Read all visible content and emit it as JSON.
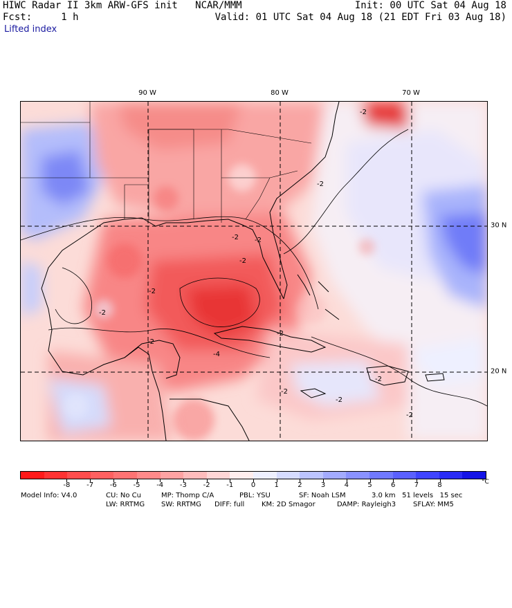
{
  "header": {
    "title": "HIWC Radar II 3km ARW-GFS init   NCAR/MMM",
    "fcst": "Fcst:     1 h",
    "field": "Lifted index",
    "init": "Init: 00 UTC Sat 04 Aug 18",
    "valid": "Valid: 01 UTC Sat 04 Aug 18 (21 EDT Fri 03 Aug 18)"
  },
  "map": {
    "lon_labels": [
      "90 W",
      "80 W",
      "70 W"
    ],
    "lat_labels": [
      "30 N",
      "20 N"
    ],
    "contour_labels": [
      "-2",
      "-2",
      "-2",
      "-2",
      "-2",
      "-2",
      "-2",
      "-2",
      "-2",
      "-2",
      "-2",
      "-2",
      "-2",
      "-4"
    ]
  },
  "colorbar": {
    "labels": [
      "-8",
      "-7",
      "-6",
      "-5",
      "-4",
      "-3",
      "-2",
      "-1",
      "0",
      "1",
      "2",
      "3",
      "4",
      "5",
      "6",
      "7",
      "8"
    ],
    "unit": "°C",
    "colors": [
      "#ff1a1a",
      "#ff3333",
      "#ff4d4d",
      "#ff6060",
      "#ff7373",
      "#ff8a8a",
      "#ffa3a3",
      "#ffbcbc",
      "#ffd6d6",
      "#ffeeee",
      "#eef0ff",
      "#d6dcff",
      "#bcc4ff",
      "#a3abff",
      "#8a92ff",
      "#7079ff",
      "#5a60ff",
      "#3f44ff",
      "#2a2cf5",
      "#1414e6"
    ]
  },
  "footer": {
    "line1_a": "Model Info: V4.0",
    "line1_b": "CU: No Cu",
    "line1_c": "MP: Thomp C/A",
    "line1_d": "PBL: YSU",
    "line1_e": "SF: Noah LSM",
    "line1_f": "3.0 km   51 levels   15 sec",
    "line2_a": "LW: RRTMG",
    "line2_b": "SW: RRTMG",
    "line2_c": "DIFF: full",
    "line2_d": "KM: 2D Smagor",
    "line2_e": "DAMP: Rayleigh3",
    "line2_f": "SFLAY: MM5"
  }
}
